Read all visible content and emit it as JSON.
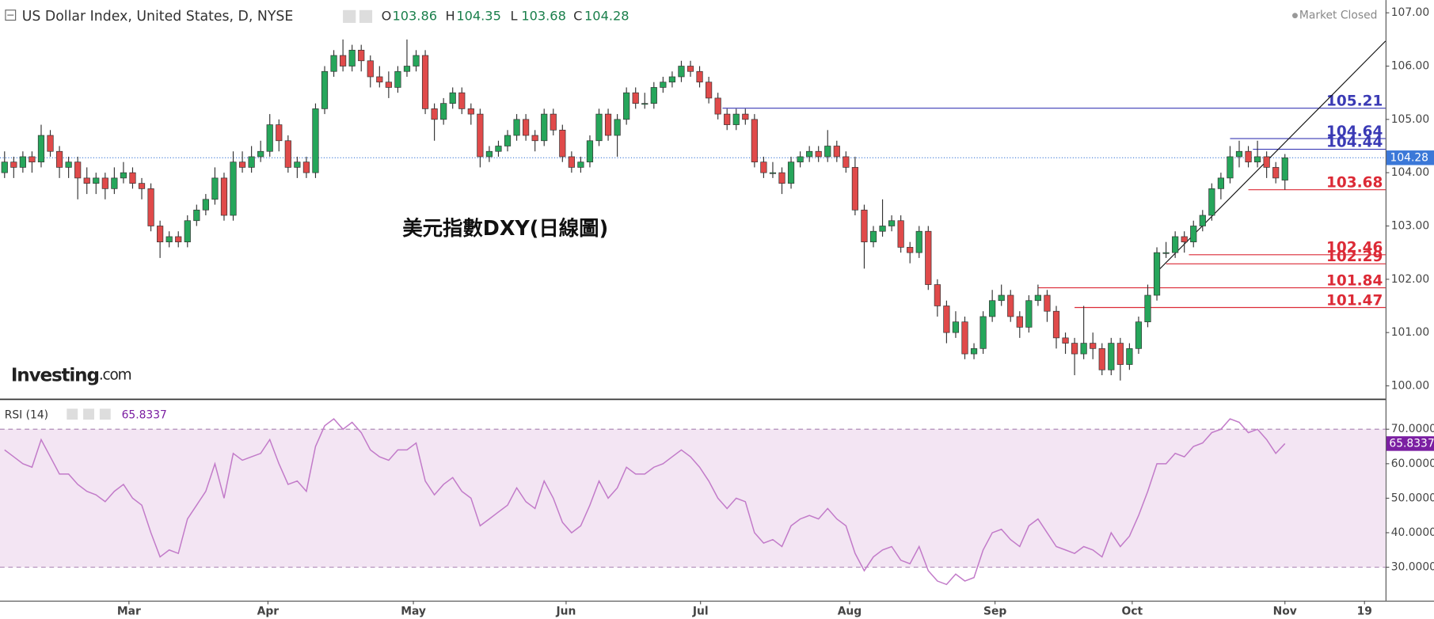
{
  "header": {
    "title": "US Dollar Index, United States, D, NYSE",
    "ohlc_labels": [
      "O",
      "H",
      "L",
      "C"
    ],
    "status": "Market Closed",
    "logo": "Investing",
    "logo_suffix": ".com"
  },
  "chart_data": {
    "type": "candlestick",
    "annotation": "美元指數DXY(日線圖)",
    "up_color": "#26a65b",
    "down_color": "#e04a4a",
    "xlim": [
      -0.5,
      151
    ],
    "ylim": [
      99.76,
      107.24
    ],
    "xticks": [
      {
        "value": 13.6,
        "label": "Mar"
      },
      {
        "value": 28.8,
        "label": "Apr"
      },
      {
        "value": 44.7,
        "label": "May"
      },
      {
        "value": 61.4,
        "label": "Jun"
      },
      {
        "value": 76.1,
        "label": "Jul"
      },
      {
        "value": 92.4,
        "label": "Aug"
      },
      {
        "value": 108.3,
        "label": "Sep"
      },
      {
        "value": 123.3,
        "label": "Oct"
      },
      {
        "value": 140,
        "label": "Nov"
      },
      {
        "value": 148.7,
        "label": "19"
      }
    ],
    "yticks": [
      {
        "value": 100,
        "label": "100.00"
      },
      {
        "value": 101,
        "label": "101.00"
      },
      {
        "value": 102,
        "label": "102.00"
      },
      {
        "value": 103,
        "label": "103.00"
      },
      {
        "value": 104,
        "label": "104.00"
      },
      {
        "value": 105,
        "label": "105.00"
      },
      {
        "value": 106,
        "label": "106.00"
      },
      {
        "value": 107,
        "label": "107.00"
      }
    ],
    "candles": [
      [
        104.0,
        104.4,
        103.9,
        104.2
      ],
      [
        104.2,
        104.3,
        103.9,
        104.1
      ],
      [
        104.1,
        104.4,
        104.0,
        104.3
      ],
      [
        104.3,
        104.4,
        104.0,
        104.2
      ],
      [
        104.2,
        104.9,
        104.1,
        104.7
      ],
      [
        104.7,
        104.8,
        104.3,
        104.4
      ],
      [
        104.4,
        104.5,
        103.9,
        104.1
      ],
      [
        104.1,
        104.3,
        103.9,
        104.2
      ],
      [
        104.2,
        104.3,
        103.5,
        103.9
      ],
      [
        103.9,
        104.1,
        103.6,
        103.8
      ],
      [
        103.8,
        104.0,
        103.6,
        103.9
      ],
      [
        103.9,
        104.0,
        103.5,
        103.7
      ],
      [
        103.7,
        104.1,
        103.6,
        103.9
      ],
      [
        103.9,
        104.2,
        103.8,
        104.0
      ],
      [
        104.0,
        104.1,
        103.7,
        103.8
      ],
      [
        103.8,
        103.9,
        103.5,
        103.7
      ],
      [
        103.7,
        103.8,
        102.9,
        103.0
      ],
      [
        103.0,
        103.1,
        102.4,
        102.7
      ],
      [
        102.7,
        102.9,
        102.6,
        102.8
      ],
      [
        102.8,
        102.9,
        102.6,
        102.7
      ],
      [
        102.7,
        103.2,
        102.6,
        103.1
      ],
      [
        103.1,
        103.4,
        103.0,
        103.3
      ],
      [
        103.3,
        103.6,
        103.2,
        103.5
      ],
      [
        103.5,
        104.1,
        103.4,
        103.9
      ],
      [
        103.9,
        104.0,
        103.1,
        103.2
      ],
      [
        103.2,
        104.4,
        103.1,
        104.2
      ],
      [
        104.2,
        104.4,
        104.0,
        104.1
      ],
      [
        104.1,
        104.5,
        104.0,
        104.3
      ],
      [
        104.3,
        104.6,
        104.2,
        104.4
      ],
      [
        104.4,
        105.1,
        104.3,
        104.9
      ],
      [
        104.9,
        105.0,
        104.4,
        104.6
      ],
      [
        104.6,
        104.7,
        104.0,
        104.1
      ],
      [
        104.1,
        104.3,
        103.9,
        104.2
      ],
      [
        104.2,
        104.3,
        103.9,
        104.0
      ],
      [
        104.0,
        105.3,
        103.9,
        105.2
      ],
      [
        105.2,
        106.0,
        105.1,
        105.9
      ],
      [
        105.9,
        106.3,
        105.8,
        106.2
      ],
      [
        106.2,
        106.5,
        105.9,
        106.0
      ],
      [
        106.0,
        106.4,
        105.9,
        106.3
      ],
      [
        106.3,
        106.4,
        105.9,
        106.1
      ],
      [
        106.1,
        106.2,
        105.6,
        105.8
      ],
      [
        105.8,
        106.0,
        105.6,
        105.7
      ],
      [
        105.7,
        105.9,
        105.4,
        105.6
      ],
      [
        105.6,
        106.0,
        105.5,
        105.9
      ],
      [
        105.9,
        106.5,
        105.8,
        106.0
      ],
      [
        106.0,
        106.3,
        105.9,
        106.2
      ],
      [
        106.2,
        106.3,
        105.1,
        105.2
      ],
      [
        105.2,
        105.3,
        104.6,
        105.0
      ],
      [
        105.0,
        105.4,
        104.9,
        105.3
      ],
      [
        105.3,
        105.6,
        105.2,
        105.5
      ],
      [
        105.5,
        105.6,
        105.1,
        105.2
      ],
      [
        105.2,
        105.3,
        104.9,
        105.1
      ],
      [
        105.1,
        105.2,
        104.1,
        104.3
      ],
      [
        104.3,
        104.5,
        104.2,
        104.4
      ],
      [
        104.4,
        104.6,
        104.3,
        104.5
      ],
      [
        104.5,
        104.8,
        104.4,
        104.7
      ],
      [
        104.7,
        105.1,
        104.6,
        105.0
      ],
      [
        105.0,
        105.1,
        104.6,
        104.7
      ],
      [
        104.7,
        104.8,
        104.4,
        104.6
      ],
      [
        104.6,
        105.2,
        104.5,
        105.1
      ],
      [
        105.1,
        105.2,
        104.7,
        104.8
      ],
      [
        104.8,
        104.9,
        104.2,
        104.3
      ],
      [
        104.3,
        104.4,
        104.0,
        104.1
      ],
      [
        104.1,
        104.3,
        104.0,
        104.2
      ],
      [
        104.2,
        104.7,
        104.1,
        104.6
      ],
      [
        104.6,
        105.2,
        104.5,
        105.1
      ],
      [
        105.1,
        105.2,
        104.6,
        104.7
      ],
      [
        104.7,
        105.1,
        104.3,
        105.0
      ],
      [
        105.0,
        105.6,
        104.9,
        105.5
      ],
      [
        105.5,
        105.6,
        105.2,
        105.3
      ],
      [
        105.3,
        105.5,
        105.2,
        105.3
      ],
      [
        105.3,
        105.7,
        105.2,
        105.6
      ],
      [
        105.6,
        105.8,
        105.5,
        105.7
      ],
      [
        105.7,
        105.9,
        105.6,
        105.8
      ],
      [
        105.8,
        106.1,
        105.7,
        106.0
      ],
      [
        106.0,
        106.1,
        105.8,
        105.9
      ],
      [
        105.9,
        106.0,
        105.6,
        105.7
      ],
      [
        105.7,
        105.8,
        105.3,
        105.4
      ],
      [
        105.4,
        105.5,
        105.0,
        105.1
      ],
      [
        105.1,
        105.2,
        104.8,
        104.9
      ],
      [
        104.9,
        105.2,
        104.8,
        105.1
      ],
      [
        105.1,
        105.2,
        104.9,
        105.0
      ],
      [
        105.0,
        105.1,
        104.1,
        104.2
      ],
      [
        104.2,
        104.3,
        103.9,
        104.0
      ],
      [
        104.0,
        104.2,
        103.9,
        104.0
      ],
      [
        104.0,
        104.1,
        103.6,
        103.8
      ],
      [
        103.8,
        104.3,
        103.7,
        104.2
      ],
      [
        104.2,
        104.4,
        104.1,
        104.3
      ],
      [
        104.3,
        104.5,
        104.2,
        104.4
      ],
      [
        104.4,
        104.5,
        104.2,
        104.3
      ],
      [
        104.3,
        104.8,
        104.2,
        104.5
      ],
      [
        104.5,
        104.6,
        104.2,
        104.3
      ],
      [
        104.3,
        104.4,
        104.0,
        104.1
      ],
      [
        104.1,
        104.3,
        103.2,
        103.3
      ],
      [
        103.3,
        103.4,
        102.2,
        102.7
      ],
      [
        102.7,
        103.0,
        102.6,
        102.9
      ],
      [
        102.9,
        103.5,
        102.8,
        103.0
      ],
      [
        103.0,
        103.2,
        102.9,
        103.1
      ],
      [
        103.1,
        103.2,
        102.5,
        102.6
      ],
      [
        102.6,
        102.7,
        102.3,
        102.5
      ],
      [
        102.5,
        103.0,
        102.4,
        102.9
      ],
      [
        102.9,
        103.0,
        101.8,
        101.9
      ],
      [
        101.9,
        102.0,
        101.3,
        101.5
      ],
      [
        101.5,
        101.6,
        100.8,
        101.0
      ],
      [
        101.0,
        101.4,
        100.9,
        101.2
      ],
      [
        101.2,
        101.3,
        100.5,
        100.6
      ],
      [
        100.6,
        100.8,
        100.5,
        100.7
      ],
      [
        100.7,
        101.4,
        100.6,
        101.3
      ],
      [
        101.3,
        101.8,
        101.2,
        101.6
      ],
      [
        101.6,
        101.9,
        101.5,
        101.7
      ],
      [
        101.7,
        101.8,
        101.2,
        101.3
      ],
      [
        101.3,
        101.4,
        100.9,
        101.1
      ],
      [
        101.1,
        101.7,
        101.0,
        101.6
      ],
      [
        101.6,
        101.9,
        101.5,
        101.7
      ],
      [
        101.7,
        101.8,
        101.2,
        101.4
      ],
      [
        101.4,
        101.5,
        100.7,
        100.9
      ],
      [
        100.9,
        101.0,
        100.6,
        100.8
      ],
      [
        100.8,
        100.9,
        100.2,
        100.6
      ],
      [
        100.6,
        101.5,
        100.5,
        100.8
      ],
      [
        100.8,
        101.0,
        100.5,
        100.7
      ],
      [
        100.7,
        100.8,
        100.2,
        100.3
      ],
      [
        100.3,
        100.9,
        100.2,
        100.8
      ],
      [
        100.8,
        100.9,
        100.1,
        100.4
      ],
      [
        100.4,
        100.8,
        100.3,
        100.7
      ],
      [
        100.7,
        101.3,
        100.6,
        101.2
      ],
      [
        101.2,
        101.9,
        101.1,
        101.7
      ],
      [
        101.7,
        102.6,
        101.6,
        102.5
      ],
      [
        102.5,
        102.7,
        102.4,
        102.5
      ],
      [
        102.5,
        102.9,
        102.4,
        102.8
      ],
      [
        102.8,
        102.9,
        102.5,
        102.7
      ],
      [
        102.7,
        103.1,
        102.6,
        103.0
      ],
      [
        103.0,
        103.3,
        102.9,
        103.2
      ],
      [
        103.2,
        103.8,
        103.1,
        103.7
      ],
      [
        103.7,
        104.0,
        103.5,
        103.9
      ],
      [
        103.9,
        104.5,
        103.8,
        104.3
      ],
      [
        104.3,
        104.6,
        104.1,
        104.4
      ],
      [
        104.4,
        104.5,
        104.1,
        104.2
      ],
      [
        104.2,
        104.6,
        104.1,
        104.3
      ],
      [
        104.3,
        104.4,
        103.9,
        104.1
      ],
      [
        104.1,
        104.2,
        103.8,
        103.9
      ],
      [
        103.86,
        104.35,
        103.68,
        104.28
      ]
    ],
    "levels": [
      {
        "value": 105.21,
        "from": 78.5,
        "color": "#3a3ab5"
      },
      {
        "value": 104.64,
        "from": 134,
        "color": "#3a3ab5"
      },
      {
        "value": 104.44,
        "from": 136.5,
        "color": "#3a3ab5"
      },
      {
        "value": 103.68,
        "from": 136,
        "color": "#dc2a36"
      },
      {
        "value": 102.46,
        "from": 129.5,
        "color": "#dc2a36"
      },
      {
        "value": 102.29,
        "from": 127,
        "color": "#dc2a36"
      },
      {
        "value": 101.84,
        "from": 113,
        "color": "#dc2a36"
      },
      {
        "value": 101.47,
        "from": 117,
        "color": "#dc2a36"
      }
    ],
    "trendline": {
      "x": [
        126,
        151
      ],
      "y": [
        102.14,
        106.47
      ]
    },
    "last_price_color": "#3b78d8",
    "rsi": {
      "name": "RSI (14)",
      "color": "#c27bc9",
      "tag_color": "#7b1fa2",
      "ylim": [
        20.3,
        78.6
      ],
      "band": [
        30,
        70
      ],
      "yticks": [
        {
          "value": 30,
          "label": "30.0000"
        },
        {
          "value": 40,
          "label": "40.0000"
        },
        {
          "value": 50,
          "label": "50.0000"
        },
        {
          "value": 60,
          "label": "60.0000"
        },
        {
          "value": 70,
          "label": "70.0000"
        }
      ],
      "values": [
        64,
        62,
        60,
        59,
        67,
        62,
        57,
        57,
        54,
        52,
        51,
        49,
        52,
        54,
        50,
        48,
        40,
        33,
        35,
        34,
        44,
        48,
        52,
        60,
        50,
        63,
        61,
        62,
        63,
        67,
        60,
        54,
        55,
        52,
        65,
        71,
        73,
        70,
        72,
        69,
        64,
        62,
        61,
        64,
        64,
        66,
        55,
        51,
        54,
        56,
        52,
        50,
        42,
        44,
        46,
        48,
        53,
        49,
        47,
        55,
        50,
        43,
        40,
        42,
        48,
        55,
        50,
        53,
        59,
        57,
        57,
        59,
        60,
        62,
        64,
        62,
        59,
        55,
        50,
        47,
        50,
        49,
        40,
        37,
        38,
        36,
        42,
        44,
        45,
        44,
        47,
        44,
        42,
        34,
        29,
        33,
        35,
        36,
        32,
        31,
        36,
        29,
        26,
        25,
        28,
        26,
        27,
        35,
        40,
        41,
        38,
        36,
        42,
        44,
        40,
        36,
        35,
        34,
        36,
        35,
        33,
        40,
        36,
        39,
        45,
        52,
        60,
        60,
        63,
        62,
        65,
        66,
        69,
        70,
        73,
        72,
        69,
        70,
        67,
        63,
        65.8337
      ]
    }
  }
}
